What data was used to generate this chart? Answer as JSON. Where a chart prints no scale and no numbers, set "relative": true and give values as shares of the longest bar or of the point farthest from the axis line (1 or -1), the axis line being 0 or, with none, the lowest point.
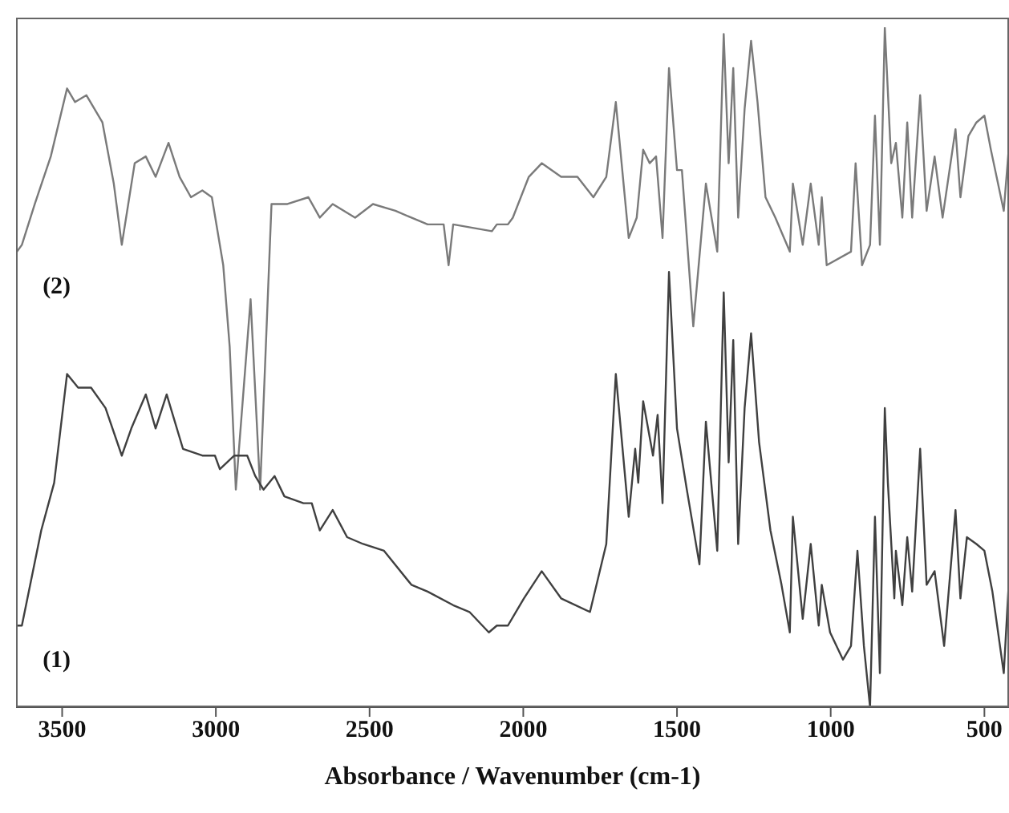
{
  "chart_data": {
    "type": "line",
    "xlabel": "Absorbance / Wavenumber (cm-1)",
    "relative": true,
    "xlim": [
      3650,
      420
    ],
    "xticks": [
      3500,
      3000,
      2500,
      2000,
      1500,
      1000,
      500
    ],
    "grid": false,
    "legend": false,
    "marker": "none",
    "line_style": "solid",
    "series": [
      {
        "name": "(2)",
        "color": "#7a7a7a",
        "x": [
          3647,
          3631,
          3589,
          3537,
          3484,
          3458,
          3421,
          3369,
          3332,
          3306,
          3264,
          3228,
          3196,
          3154,
          3118,
          3081,
          3044,
          3013,
          2976,
          2955,
          2935,
          2887,
          2856,
          2819,
          2767,
          2699,
          2662,
          2620,
          2547,
          2489,
          2416,
          2364,
          2311,
          2259,
          2243,
          2228,
          2102,
          2086,
          2050,
          2034,
          1982,
          1940,
          1877,
          1824,
          1772,
          1730,
          1699,
          1657,
          1631,
          1610,
          1589,
          1568,
          1547,
          1526,
          1500,
          1484,
          1447,
          1406,
          1369,
          1348,
          1332,
          1317,
          1301,
          1280,
          1259,
          1238,
          1212,
          1180,
          1133,
          1123,
          1091,
          1065,
          1039,
          1029,
          1013,
          934,
          919,
          898,
          872,
          856,
          840,
          824,
          803,
          788,
          767,
          751,
          735,
          709,
          688,
          662,
          636,
          594,
          578,
          552,
          526,
          500,
          479,
          437,
          421
        ],
        "values": [
          0.67,
          0.68,
          0.74,
          0.81,
          0.91,
          0.89,
          0.9,
          0.86,
          0.77,
          0.68,
          0.8,
          0.81,
          0.78,
          0.83,
          0.78,
          0.75,
          0.76,
          0.75,
          0.65,
          0.53,
          0.32,
          0.6,
          0.32,
          0.74,
          0.74,
          0.75,
          0.72,
          0.74,
          0.72,
          0.74,
          0.73,
          0.72,
          0.71,
          0.71,
          0.65,
          0.71,
          0.7,
          0.71,
          0.71,
          0.72,
          0.78,
          0.8,
          0.78,
          0.78,
          0.75,
          0.78,
          0.89,
          0.69,
          0.72,
          0.82,
          0.8,
          0.81,
          0.69,
          0.94,
          0.79,
          0.79,
          0.56,
          0.77,
          0.67,
          0.99,
          0.8,
          0.94,
          0.72,
          0.88,
          0.98,
          0.89,
          0.75,
          0.72,
          0.67,
          0.77,
          0.68,
          0.77,
          0.68,
          0.75,
          0.65,
          0.67,
          0.8,
          0.65,
          0.68,
          0.87,
          0.68,
          1,
          0.8,
          0.83,
          0.72,
          0.86,
          0.72,
          0.9,
          0.73,
          0.81,
          0.72,
          0.85,
          0.75,
          0.84,
          0.86,
          0.87,
          0.82,
          0.73,
          0.82
        ]
      },
      {
        "name": "(1)",
        "color": "#404040",
        "x": [
          3647,
          3631,
          3568,
          3526,
          3484,
          3448,
          3406,
          3359,
          3306,
          3275,
          3228,
          3196,
          3160,
          3107,
          3044,
          3003,
          2987,
          2940,
          2898,
          2872,
          2845,
          2809,
          2777,
          2715,
          2688,
          2662,
          2620,
          2573,
          2521,
          2453,
          2364,
          2311,
          2228,
          2175,
          2112,
          2086,
          2050,
          1998,
          1940,
          1877,
          1783,
          1730,
          1699,
          1657,
          1636,
          1626,
          1610,
          1578,
          1563,
          1547,
          1526,
          1500,
          1468,
          1427,
          1406,
          1369,
          1348,
          1332,
          1317,
          1301,
          1280,
          1259,
          1233,
          1196,
          1160,
          1133,
          1123,
          1091,
          1065,
          1039,
          1029,
          1002,
          960,
          934,
          913,
          892,
          872,
          856,
          840,
          824,
          814,
          793,
          788,
          767,
          751,
          735,
          709,
          688,
          662,
          631,
          594,
          578,
          557,
          526,
          500,
          474,
          437,
          421
        ],
        "values": [
          0.12,
          0.12,
          0.26,
          0.33,
          0.49,
          0.47,
          0.47,
          0.44,
          0.37,
          0.41,
          0.46,
          0.41,
          0.46,
          0.38,
          0.37,
          0.37,
          0.35,
          0.37,
          0.37,
          0.34,
          0.32,
          0.34,
          0.31,
          0.3,
          0.3,
          0.26,
          0.29,
          0.25,
          0.24,
          0.23,
          0.18,
          0.17,
          0.15,
          0.14,
          0.11,
          0.12,
          0.12,
          0.16,
          0.2,
          0.16,
          0.14,
          0.24,
          0.49,
          0.28,
          0.38,
          0.33,
          0.45,
          0.37,
          0.43,
          0.3,
          0.64,
          0.41,
          0.32,
          0.21,
          0.42,
          0.23,
          0.61,
          0.36,
          0.54,
          0.24,
          0.44,
          0.55,
          0.39,
          0.26,
          0.18,
          0.11,
          0.28,
          0.13,
          0.24,
          0.12,
          0.18,
          0.11,
          0.07,
          0.09,
          0.23,
          0.09,
          0,
          0.28,
          0.05,
          0.44,
          0.33,
          0.16,
          0.23,
          0.15,
          0.25,
          0.17,
          0.38,
          0.18,
          0.2,
          0.09,
          0.29,
          0.16,
          0.25,
          0.24,
          0.23,
          0.17,
          0.05,
          0.18
        ]
      }
    ]
  }
}
